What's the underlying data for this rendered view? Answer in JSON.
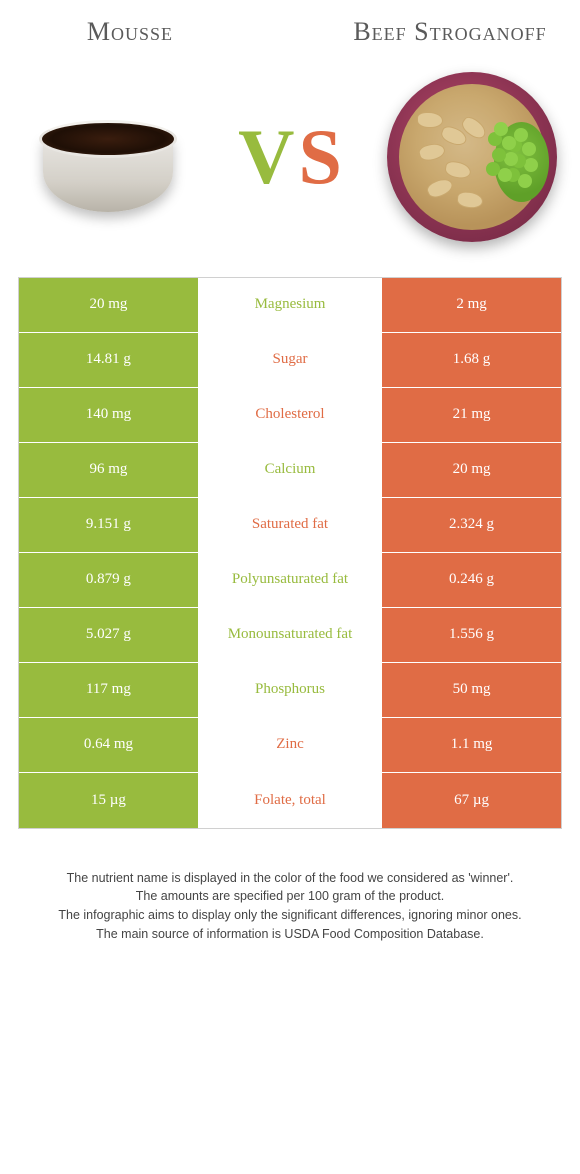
{
  "food_left": {
    "title": "Mousse",
    "color": "#98bb3e"
  },
  "food_right": {
    "title": "Beef Stroganoff",
    "color": "#e06c45"
  },
  "vs_left_letter": "V",
  "vs_right_letter": "S",
  "table": {
    "left_bg": "#98bb3e",
    "right_bg": "#e06c45",
    "mid_colors": {
      "left_win": "#98bb3e",
      "right_win": "#e06c45"
    },
    "rows": [
      {
        "left": "20 mg",
        "label": "Magnesium",
        "right": "2 mg",
        "winner": "left"
      },
      {
        "left": "14.81 g",
        "label": "Sugar",
        "right": "1.68 g",
        "winner": "right"
      },
      {
        "left": "140 mg",
        "label": "Cholesterol",
        "right": "21 mg",
        "winner": "right"
      },
      {
        "left": "96 mg",
        "label": "Calcium",
        "right": "20 mg",
        "winner": "left"
      },
      {
        "left": "9.151 g",
        "label": "Saturated fat",
        "right": "2.324 g",
        "winner": "right"
      },
      {
        "left": "0.879 g",
        "label": "Polyunsaturated fat",
        "right": "0.246 g",
        "winner": "left"
      },
      {
        "left": "5.027 g",
        "label": "Monounsaturated fat",
        "right": "1.556 g",
        "winner": "left"
      },
      {
        "left": "117 mg",
        "label": "Phosphorus",
        "right": "50 mg",
        "winner": "left"
      },
      {
        "left": "0.64 mg",
        "label": "Zinc",
        "right": "1.1 mg",
        "winner": "right"
      },
      {
        "left": "15 µg",
        "label": "Folate, total",
        "right": "67 µg",
        "winner": "right"
      }
    ]
  },
  "footer": {
    "line1": "The nutrient name is displayed in the color of the food we considered as 'winner'.",
    "line2": "The amounts are specified per 100 gram of the product.",
    "line3": "The infographic aims to display only the significant differences, ignoring minor ones.",
    "line4": "The main source of information is USDA Food Composition Database."
  }
}
